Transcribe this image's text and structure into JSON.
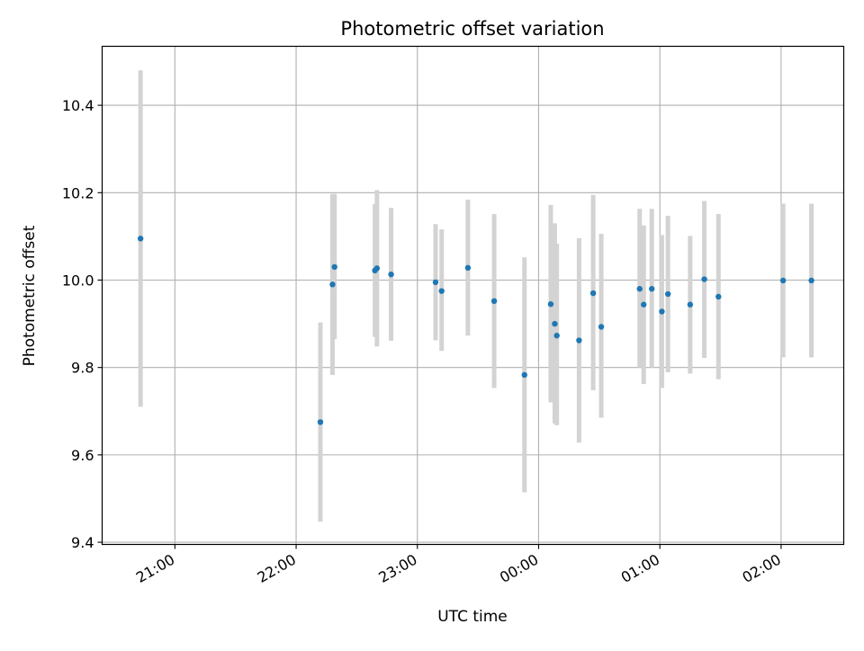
{
  "chart_data": {
    "type": "scatter",
    "title": "Photometric offset variation",
    "xlabel": "UTC time",
    "ylabel": "Photometric offset",
    "x_ticks": [
      "21:00",
      "22:00",
      "23:00",
      "00:00",
      "01:00",
      "02:00"
    ],
    "y_ticks": [
      "9.4",
      "9.6",
      "9.8",
      "10.0",
      "10.2",
      "10.4"
    ],
    "xlim": [
      "20:24",
      "02:31"
    ],
    "ylim": [
      9.395,
      10.535
    ],
    "grid": true,
    "colors": {
      "point": "#1f77b4",
      "errorbar": "#d3d3d3",
      "grid": "#b0b0b0"
    },
    "points": [
      {
        "x": "20:43",
        "y": 10.095,
        "ylow": 9.71,
        "yhigh": 10.48
      },
      {
        "x": "22:12",
        "y": 9.675,
        "ylow": 9.447,
        "yhigh": 9.903
      },
      {
        "x": "22:18",
        "y": 9.99,
        "ylow": 9.783,
        "yhigh": 10.197
      },
      {
        "x": "22:19",
        "y": 10.03,
        "ylow": 9.865,
        "yhigh": 10.197
      },
      {
        "x": "22:39",
        "y": 10.022,
        "ylow": 9.87,
        "yhigh": 10.174
      },
      {
        "x": "22:40",
        "y": 10.027,
        "ylow": 9.848,
        "yhigh": 10.206
      },
      {
        "x": "22:47",
        "y": 10.013,
        "ylow": 9.861,
        "yhigh": 10.165
      },
      {
        "x": "23:09",
        "y": 9.995,
        "ylow": 9.862,
        "yhigh": 10.128
      },
      {
        "x": "23:12",
        "y": 9.975,
        "ylow": 9.838,
        "yhigh": 10.116
      },
      {
        "x": "23:25",
        "y": 10.028,
        "ylow": 9.873,
        "yhigh": 10.184
      },
      {
        "x": "23:38",
        "y": 9.952,
        "ylow": 9.753,
        "yhigh": 10.151
      },
      {
        "x": "23:53",
        "y": 9.783,
        "ylow": 9.514,
        "yhigh": 10.052
      },
      {
        "x": "00:06",
        "y": 9.945,
        "ylow": 9.72,
        "yhigh": 10.172
      },
      {
        "x": "00:08",
        "y": 9.9,
        "ylow": 9.672,
        "yhigh": 10.13
      },
      {
        "x": "00:09",
        "y": 9.873,
        "ylow": 9.668,
        "yhigh": 10.083
      },
      {
        "x": "00:20",
        "y": 9.862,
        "ylow": 9.628,
        "yhigh": 10.096
      },
      {
        "x": "00:27",
        "y": 9.97,
        "ylow": 9.748,
        "yhigh": 10.195
      },
      {
        "x": "00:31",
        "y": 9.893,
        "ylow": 9.685,
        "yhigh": 10.106
      },
      {
        "x": "00:50",
        "y": 9.98,
        "ylow": 9.8,
        "yhigh": 10.163
      },
      {
        "x": "00:52",
        "y": 9.944,
        "ylow": 9.762,
        "yhigh": 10.125
      },
      {
        "x": "00:56",
        "y": 9.98,
        "ylow": 9.8,
        "yhigh": 10.163
      },
      {
        "x": "01:01",
        "y": 9.928,
        "ylow": 9.753,
        "yhigh": 10.103
      },
      {
        "x": "01:04",
        "y": 9.968,
        "ylow": 9.789,
        "yhigh": 10.147
      },
      {
        "x": "01:15",
        "y": 9.944,
        "ylow": 9.786,
        "yhigh": 10.101
      },
      {
        "x": "01:22",
        "y": 10.002,
        "ylow": 9.822,
        "yhigh": 10.181
      },
      {
        "x": "01:29",
        "y": 9.962,
        "ylow": 9.773,
        "yhigh": 10.151
      },
      {
        "x": "02:01",
        "y": 9.999,
        "ylow": 9.823,
        "yhigh": 10.175
      },
      {
        "x": "02:15",
        "y": 9.999,
        "ylow": 9.823,
        "yhigh": 10.175
      }
    ]
  }
}
